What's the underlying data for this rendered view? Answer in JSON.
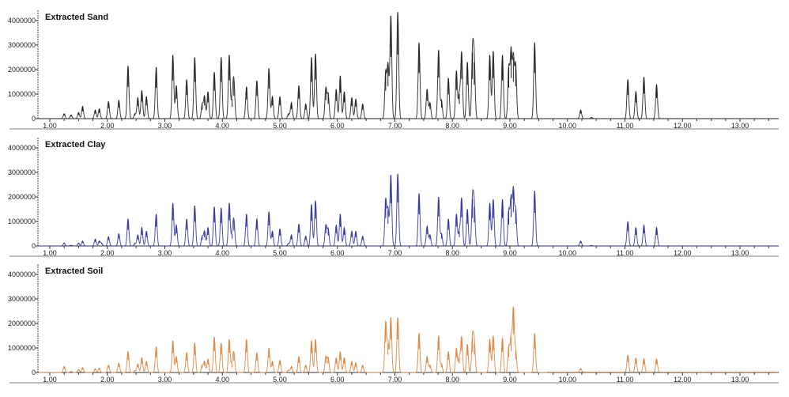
{
  "chart_data": [
    {
      "type": "line",
      "title": "Extracted Sand",
      "color": "#1a1a1a",
      "xlim": [
        0.8,
        13.67
      ],
      "ylim": [
        0,
        4400000
      ],
      "yticks": [
        "0",
        "1000000",
        "2000000",
        "3000000",
        "4000000"
      ],
      "xticks": [
        "1.00",
        "2.00",
        "3.00",
        "4.00",
        "5.00",
        "6.00",
        "7.00",
        "8.00",
        "9.00",
        "10.00",
        "11.00",
        "12.00",
        "13.00"
      ],
      "grid": false,
      "peaks": [
        [
          1.25,
          200000
        ],
        [
          1.37,
          150000
        ],
        [
          1.5,
          250000
        ],
        [
          1.57,
          500000
        ],
        [
          1.79,
          350000
        ],
        [
          1.86,
          400000
        ],
        [
          2.02,
          700000
        ],
        [
          2.2,
          750000
        ],
        [
          2.36,
          2150000
        ],
        [
          2.48,
          200000
        ],
        [
          2.53,
          850000
        ],
        [
          2.6,
          1150000
        ],
        [
          2.68,
          900000
        ],
        [
          2.85,
          2100000
        ],
        [
          3.14,
          2600000
        ],
        [
          3.2,
          1350000
        ],
        [
          3.38,
          1600000
        ],
        [
          3.52,
          2500000
        ],
        [
          3.65,
          600000
        ],
        [
          3.69,
          900000
        ],
        [
          3.75,
          1100000
        ],
        [
          3.86,
          1900000
        ],
        [
          3.98,
          2500000
        ],
        [
          4.12,
          2600000
        ],
        [
          4.17,
          800000
        ],
        [
          4.2,
          1550000
        ],
        [
          4.42,
          1300000
        ],
        [
          4.6,
          1550000
        ],
        [
          4.81,
          2050000
        ],
        [
          4.87,
          900000
        ],
        [
          5.0,
          900000
        ],
        [
          5.15,
          200000
        ],
        [
          5.2,
          650000
        ],
        [
          5.33,
          1350000
        ],
        [
          5.45,
          600000
        ],
        [
          5.55,
          2500000
        ],
        [
          5.62,
          2650000
        ],
        [
          5.8,
          1250000
        ],
        [
          5.84,
          1000000
        ],
        [
          5.98,
          1200000
        ],
        [
          6.05,
          1750000
        ],
        [
          6.12,
          1100000
        ],
        [
          6.25,
          850000
        ],
        [
          6.32,
          800000
        ],
        [
          6.44,
          600000
        ],
        [
          6.84,
          1900000
        ],
        [
          6.88,
          2200000
        ],
        [
          6.93,
          4200000
        ],
        [
          7.05,
          4350000
        ],
        [
          7.42,
          3100000
        ],
        [
          7.56,
          1200000
        ],
        [
          7.61,
          650000
        ],
        [
          7.76,
          2800000
        ],
        [
          7.81,
          750000
        ],
        [
          7.93,
          1650000
        ],
        [
          8.07,
          1950000
        ],
        [
          8.12,
          1000000
        ],
        [
          8.16,
          2700000
        ],
        [
          8.26,
          2300000
        ],
        [
          8.35,
          2700000
        ],
        [
          8.38,
          2300000
        ],
        [
          8.65,
          2600000
        ],
        [
          8.71,
          2750000
        ],
        [
          8.87,
          2600000
        ],
        [
          8.98,
          2100000
        ],
        [
          9.02,
          2750000
        ],
        [
          9.06,
          2500000
        ],
        [
          9.1,
          2200000
        ],
        [
          9.43,
          3100000
        ],
        [
          10.23,
          350000
        ],
        [
          10.42,
          50000
        ],
        [
          11.05,
          1600000
        ],
        [
          11.19,
          1100000
        ],
        [
          11.33,
          1700000
        ],
        [
          11.55,
          1400000
        ]
      ]
    },
    {
      "type": "line",
      "title": "Extracted Clay",
      "color": "#2b2b9a",
      "xlim": [
        0.8,
        13.67
      ],
      "ylim": [
        0,
        4400000
      ],
      "yticks": [
        "0",
        "1000000",
        "2000000",
        "3000000",
        "4000000"
      ],
      "xticks": [
        "1.00",
        "2.00",
        "3.00",
        "4.00",
        "5.00",
        "6.00",
        "7.00",
        "8.00",
        "9.00",
        "10.00",
        "11.00",
        "12.00",
        "13.00"
      ],
      "grid": false,
      "peaks": [
        [
          1.25,
          120000
        ],
        [
          1.37,
          30000
        ],
        [
          1.5,
          120000
        ],
        [
          1.57,
          200000
        ],
        [
          1.79,
          280000
        ],
        [
          1.86,
          200000
        ],
        [
          1.9,
          120000
        ],
        [
          2.02,
          380000
        ],
        [
          2.2,
          500000
        ],
        [
          2.36,
          1100000
        ],
        [
          2.48,
          100000
        ],
        [
          2.53,
          450000
        ],
        [
          2.6,
          750000
        ],
        [
          2.68,
          600000
        ],
        [
          2.85,
          1300000
        ],
        [
          3.14,
          1750000
        ],
        [
          3.2,
          850000
        ],
        [
          3.38,
          1100000
        ],
        [
          3.52,
          1650000
        ],
        [
          3.65,
          400000
        ],
        [
          3.69,
          600000
        ],
        [
          3.75,
          750000
        ],
        [
          3.86,
          1600000
        ],
        [
          3.98,
          1550000
        ],
        [
          4.12,
          1750000
        ],
        [
          4.17,
          500000
        ],
        [
          4.2,
          1050000
        ],
        [
          4.42,
          1300000
        ],
        [
          4.6,
          1100000
        ],
        [
          4.81,
          1400000
        ],
        [
          4.87,
          600000
        ],
        [
          5.0,
          700000
        ],
        [
          5.15,
          100000
        ],
        [
          5.2,
          450000
        ],
        [
          5.33,
          900000
        ],
        [
          5.45,
          400000
        ],
        [
          5.55,
          1700000
        ],
        [
          5.62,
          1850000
        ],
        [
          5.8,
          850000
        ],
        [
          5.84,
          700000
        ],
        [
          5.98,
          850000
        ],
        [
          6.05,
          1300000
        ],
        [
          6.12,
          750000
        ],
        [
          6.25,
          600000
        ],
        [
          6.32,
          600000
        ],
        [
          6.44,
          400000
        ],
        [
          6.84,
          1900000
        ],
        [
          6.88,
          1500000
        ],
        [
          6.93,
          2900000
        ],
        [
          7.05,
          2950000
        ],
        [
          7.42,
          2150000
        ],
        [
          7.56,
          800000
        ],
        [
          7.61,
          450000
        ],
        [
          7.76,
          2000000
        ],
        [
          7.81,
          500000
        ],
        [
          7.93,
          1100000
        ],
        [
          8.07,
          1300000
        ],
        [
          8.12,
          600000
        ],
        [
          8.16,
          1950000
        ],
        [
          8.26,
          1500000
        ],
        [
          8.35,
          1900000
        ],
        [
          8.38,
          1600000
        ],
        [
          8.65,
          1750000
        ],
        [
          8.71,
          1900000
        ],
        [
          8.87,
          1900000
        ],
        [
          8.98,
          1450000
        ],
        [
          9.02,
          1950000
        ],
        [
          9.06,
          2300000
        ],
        [
          9.1,
          1500000
        ],
        [
          9.43,
          2250000
        ],
        [
          10.23,
          200000
        ],
        [
          10.42,
          20000
        ],
        [
          11.05,
          1000000
        ],
        [
          11.19,
          750000
        ],
        [
          11.33,
          850000
        ],
        [
          11.55,
          750000
        ]
      ]
    },
    {
      "type": "line",
      "title": "Extracted Soil",
      "color": "#d9823a",
      "xlim": [
        0.8,
        13.67
      ],
      "ylim": [
        0,
        4400000
      ],
      "yticks": [
        "0",
        "1000000",
        "2000000",
        "3000000",
        "4000000"
      ],
      "xticks": [
        "1.00",
        "2.00",
        "3.00",
        "4.00",
        "5.00",
        "6.00",
        "7.00",
        "8.00",
        "9.00",
        "10.00",
        "11.00",
        "12.00",
        "13.00"
      ],
      "grid": false,
      "peaks": [
        [
          1.25,
          250000
        ],
        [
          1.37,
          50000
        ],
        [
          1.5,
          120000
        ],
        [
          1.57,
          200000
        ],
        [
          1.79,
          150000
        ],
        [
          1.86,
          180000
        ],
        [
          2.02,
          300000
        ],
        [
          2.2,
          380000
        ],
        [
          2.36,
          850000
        ],
        [
          2.48,
          80000
        ],
        [
          2.53,
          350000
        ],
        [
          2.6,
          600000
        ],
        [
          2.68,
          450000
        ],
        [
          2.85,
          1050000
        ],
        [
          3.14,
          1300000
        ],
        [
          3.2,
          650000
        ],
        [
          3.38,
          800000
        ],
        [
          3.52,
          1200000
        ],
        [
          3.65,
          300000
        ],
        [
          3.69,
          450000
        ],
        [
          3.75,
          550000
        ],
        [
          3.86,
          1450000
        ],
        [
          3.98,
          1200000
        ],
        [
          4.12,
          1350000
        ],
        [
          4.17,
          350000
        ],
        [
          4.2,
          800000
        ],
        [
          4.42,
          1350000
        ],
        [
          4.6,
          800000
        ],
        [
          4.81,
          1000000
        ],
        [
          4.87,
          450000
        ],
        [
          5.0,
          500000
        ],
        [
          5.15,
          100000
        ],
        [
          5.2,
          250000
        ],
        [
          5.33,
          650000
        ],
        [
          5.45,
          300000
        ],
        [
          5.55,
          1300000
        ],
        [
          5.62,
          1350000
        ],
        [
          5.8,
          650000
        ],
        [
          5.84,
          600000
        ],
        [
          5.98,
          600000
        ],
        [
          6.05,
          850000
        ],
        [
          6.12,
          600000
        ],
        [
          6.25,
          450000
        ],
        [
          6.32,
          400000
        ],
        [
          6.44,
          300000
        ],
        [
          6.84,
          2050000
        ],
        [
          6.88,
          1200000
        ],
        [
          6.93,
          2250000
        ],
        [
          7.05,
          2250000
        ],
        [
          7.42,
          1600000
        ],
        [
          7.56,
          650000
        ],
        [
          7.61,
          300000
        ],
        [
          7.76,
          1500000
        ],
        [
          7.81,
          350000
        ],
        [
          7.93,
          850000
        ],
        [
          8.07,
          1000000
        ],
        [
          8.12,
          600000
        ],
        [
          8.16,
          1450000
        ],
        [
          8.26,
          1150000
        ],
        [
          8.35,
          1400000
        ],
        [
          8.38,
          1200000
        ],
        [
          8.65,
          1350000
        ],
        [
          8.71,
          1500000
        ],
        [
          8.87,
          1400000
        ],
        [
          8.98,
          1050000
        ],
        [
          9.02,
          1450000
        ],
        [
          9.06,
          2600000
        ],
        [
          9.1,
          900000
        ],
        [
          9.43,
          1600000
        ],
        [
          10.23,
          150000
        ],
        [
          11.05,
          700000
        ],
        [
          11.19,
          580000
        ],
        [
          11.33,
          550000
        ],
        [
          11.55,
          550000
        ]
      ]
    }
  ]
}
